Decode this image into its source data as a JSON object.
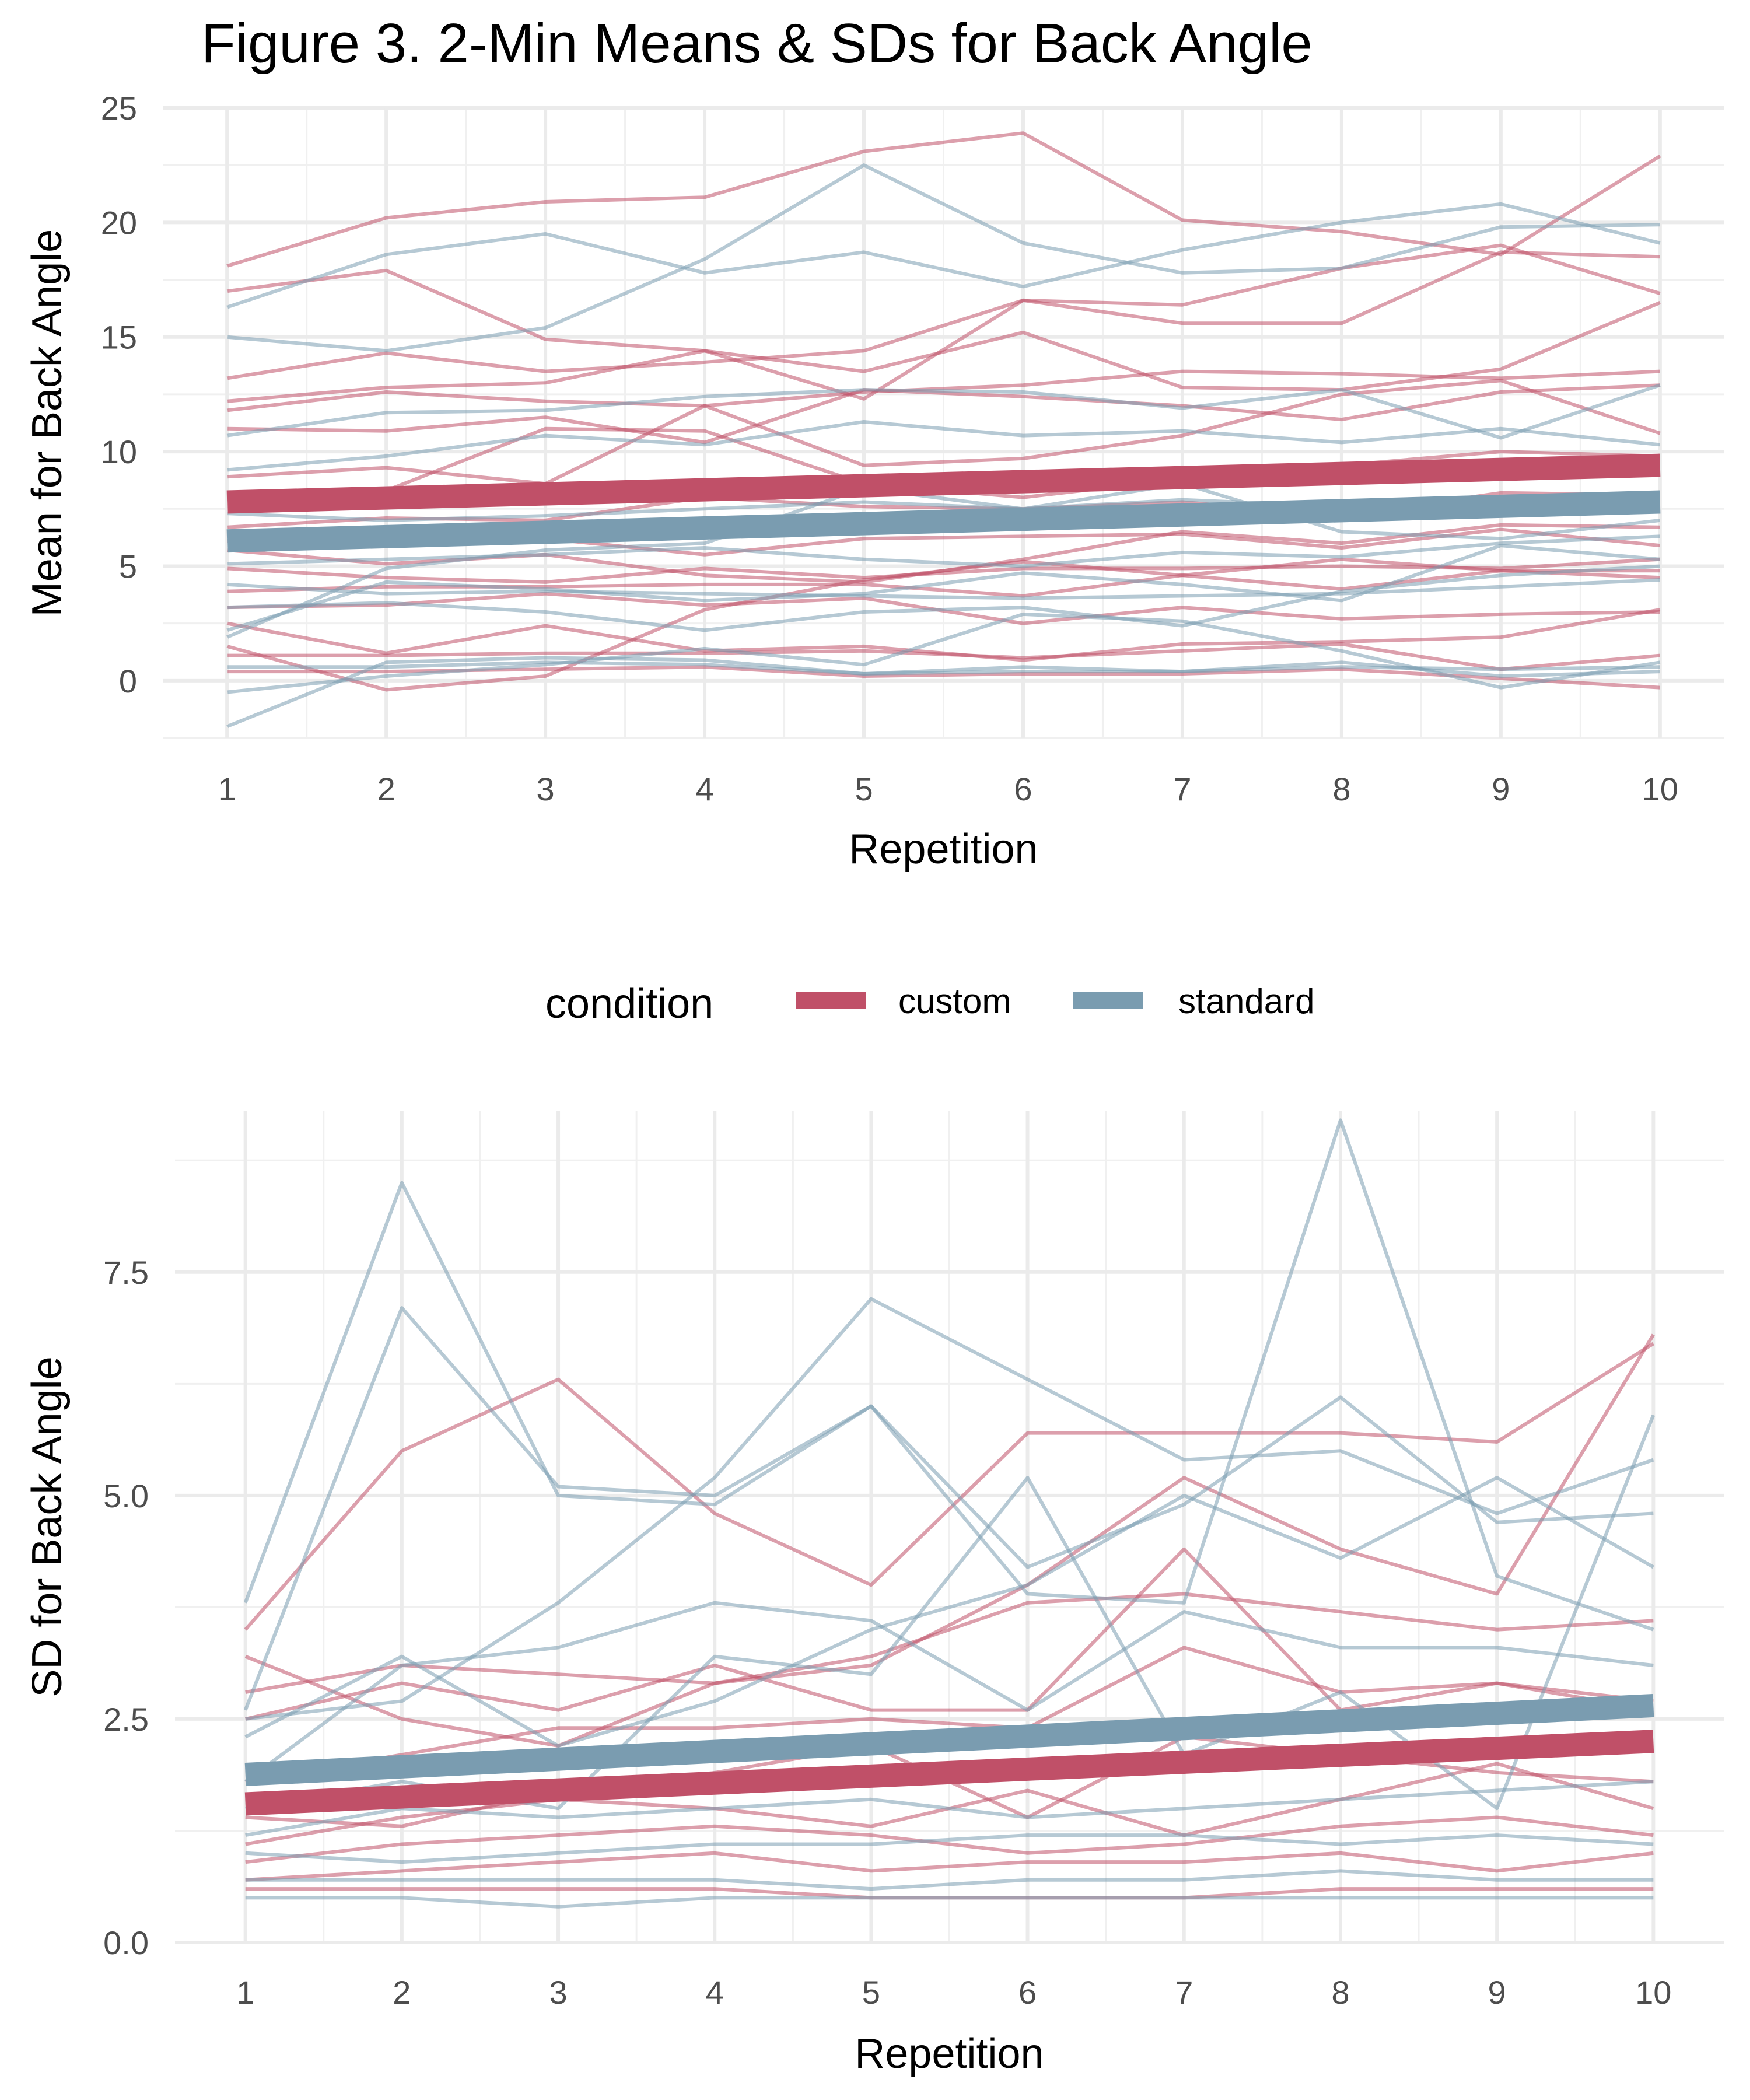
{
  "title": "Figure 3. 2-Min Means & SDs for Back Angle",
  "colors": {
    "custom": "#c05068",
    "standard": "#7a9cb0"
  },
  "legend": {
    "title": "condition",
    "items": [
      {
        "label": "custom",
        "color": "#c05068"
      },
      {
        "label": "standard",
        "color": "#7a9cb0"
      }
    ]
  },
  "chart_data": [
    {
      "type": "line",
      "xlabel": "Repetition",
      "ylabel": "Mean for Back Angle",
      "x": [
        1,
        2,
        3,
        4,
        5,
        6,
        7,
        8,
        9,
        10
      ],
      "xlim": [
        0.6,
        10.4
      ],
      "ylim": [
        -2.5,
        25
      ],
      "yticks": [
        0,
        5,
        10,
        15,
        20,
        25
      ],
      "grid": true,
      "trend": [
        {
          "condition": "custom",
          "values": [
            7.8,
            9.4
          ]
        },
        {
          "condition": "standard",
          "values": [
            6.1,
            7.8
          ]
        }
      ],
      "series": [
        {
          "condition": "custom",
          "values": [
            18.1,
            20.2,
            20.9,
            21.1,
            23.1,
            23.9,
            20.1,
            19.6,
            18.6,
            22.9
          ]
        },
        {
          "condition": "custom",
          "values": [
            17.0,
            17.9,
            14.9,
            14.4,
            12.3,
            16.6,
            16.4,
            18.0,
            19.0,
            16.9
          ]
        },
        {
          "condition": "custom",
          "values": [
            13.2,
            14.3,
            13.5,
            13.9,
            14.4,
            16.6,
            15.6,
            15.6,
            18.7,
            18.5
          ]
        },
        {
          "condition": "custom",
          "values": [
            12.2,
            12.8,
            13.0,
            14.4,
            13.5,
            15.2,
            12.8,
            12.7,
            13.6,
            16.5
          ]
        },
        {
          "condition": "custom",
          "values": [
            11.8,
            12.6,
            12.2,
            12.0,
            12.6,
            12.9,
            13.5,
            13.4,
            13.2,
            13.5
          ]
        },
        {
          "condition": "custom",
          "values": [
            11.0,
            10.9,
            11.5,
            10.4,
            12.7,
            12.4,
            12.0,
            11.4,
            12.6,
            12.9
          ]
        },
        {
          "condition": "custom",
          "values": [
            8.9,
            9.3,
            8.6,
            12.0,
            9.4,
            9.7,
            10.7,
            12.5,
            13.1,
            10.8
          ]
        },
        {
          "condition": "custom",
          "values": [
            7.9,
            8.3,
            11.0,
            10.9,
            8.6,
            8.0,
            8.8,
            9.4,
            10.0,
            9.8
          ]
        },
        {
          "condition": "custom",
          "values": [
            6.7,
            7.1,
            7.0,
            8.0,
            7.6,
            7.5,
            7.8,
            7.2,
            8.2,
            8.1
          ]
        },
        {
          "condition": "custom",
          "values": [
            6.1,
            6.0,
            6.2,
            5.5,
            6.2,
            6.3,
            6.4,
            5.8,
            6.6,
            5.9
          ]
        },
        {
          "condition": "custom",
          "values": [
            5.7,
            5.1,
            5.5,
            4.6,
            4.3,
            5.3,
            6.5,
            6.0,
            6.8,
            6.7
          ]
        },
        {
          "condition": "custom",
          "values": [
            4.9,
            4.5,
            4.3,
            4.9,
            4.5,
            4.9,
            4.9,
            5.0,
            4.9,
            5.3
          ]
        },
        {
          "condition": "custom",
          "values": [
            3.9,
            4.1,
            4.1,
            4.2,
            4.2,
            3.7,
            4.6,
            4.0,
            4.8,
            4.5
          ]
        },
        {
          "condition": "custom",
          "values": [
            3.2,
            3.3,
            3.8,
            3.3,
            3.6,
            2.5,
            3.2,
            2.7,
            2.9,
            3.0
          ]
        },
        {
          "condition": "custom",
          "values": [
            2.5,
            1.2,
            2.4,
            1.3,
            1.5,
            0.9,
            1.6,
            1.7,
            1.9,
            3.1
          ]
        },
        {
          "condition": "custom",
          "values": [
            1.5,
            -0.4,
            0.2,
            3.1,
            4.4,
            5.2,
            4.6,
            5.3,
            4.8,
            4.8
          ]
        },
        {
          "condition": "custom",
          "values": [
            1.1,
            1.1,
            1.2,
            1.2,
            1.3,
            1.0,
            1.3,
            1.6,
            0.5,
            1.1
          ]
        },
        {
          "condition": "custom",
          "values": [
            0.4,
            0.4,
            0.5,
            0.6,
            0.2,
            0.3,
            0.3,
            0.5,
            0.1,
            -0.3
          ]
        },
        {
          "condition": "standard",
          "values": [
            16.3,
            18.6,
            19.5,
            17.8,
            18.7,
            17.2,
            18.8,
            20.0,
            20.8,
            19.1
          ]
        },
        {
          "condition": "standard",
          "values": [
            15.0,
            14.4,
            15.4,
            18.4,
            22.5,
            19.1,
            17.8,
            18.0,
            19.8,
            19.9
          ]
        },
        {
          "condition": "standard",
          "values": [
            10.7,
            11.7,
            11.8,
            12.4,
            12.7,
            12.6,
            11.9,
            12.7,
            10.6,
            12.9
          ]
        },
        {
          "condition": "standard",
          "values": [
            9.2,
            9.8,
            10.7,
            10.3,
            11.3,
            10.7,
            10.9,
            10.4,
            11.0,
            10.3
          ]
        },
        {
          "condition": "standard",
          "values": [
            7.3,
            7.0,
            7.2,
            7.5,
            7.8,
            7.5,
            7.9,
            7.6,
            7.8,
            7.9
          ]
        },
        {
          "condition": "standard",
          "values": [
            5.1,
            5.3,
            5.5,
            5.8,
            5.3,
            5.0,
            5.6,
            5.4,
            6.0,
            6.3
          ]
        },
        {
          "condition": "standard",
          "values": [
            4.2,
            3.8,
            3.9,
            3.8,
            3.7,
            3.6,
            3.7,
            3.8,
            4.1,
            4.4
          ]
        },
        {
          "condition": "standard",
          "values": [
            3.2,
            3.4,
            3.0,
            2.2,
            3.0,
            3.2,
            2.4,
            3.9,
            4.6,
            5.0
          ]
        },
        {
          "condition": "standard",
          "values": [
            2.2,
            4.3,
            4.0,
            3.5,
            3.8,
            4.7,
            4.2,
            3.5,
            5.9,
            5.3
          ]
        },
        {
          "condition": "standard",
          "values": [
            1.9,
            4.9,
            5.7,
            6.0,
            8.4,
            7.5,
            8.6,
            6.5,
            6.2,
            7.0
          ]
        },
        {
          "condition": "standard",
          "values": [
            0.6,
            0.6,
            0.8,
            0.7,
            0.3,
            0.6,
            0.4,
            0.8,
            0.2,
            0.4
          ]
        },
        {
          "condition": "standard",
          "values": [
            -0.5,
            0.2,
            0.7,
            1.4,
            0.7,
            2.9,
            2.6,
            1.3,
            -0.3,
            0.8
          ]
        },
        {
          "condition": "standard",
          "values": [
            -2.0,
            0.8,
            1.0,
            0.9,
            0.3,
            0.4,
            0.4,
            0.6,
            0.5,
            0.6
          ]
        }
      ]
    },
    {
      "type": "line",
      "xlabel": "Repetition",
      "ylabel": "SD for Back Angle",
      "x": [
        1,
        2,
        3,
        4,
        5,
        6,
        7,
        8,
        9,
        10
      ],
      "xlim": [
        0.55,
        10.45
      ],
      "ylim": [
        0,
        9.3
      ],
      "yticks": [
        0,
        2.5,
        5,
        7.5
      ],
      "ytick_labels": [
        "0.0",
        "2.5",
        "5.0",
        "7.5"
      ],
      "grid": true,
      "trend": [
        {
          "condition": "custom",
          "values": [
            1.55,
            2.25
          ]
        },
        {
          "condition": "standard",
          "values": [
            1.88,
            2.65
          ]
        }
      ],
      "series": [
        {
          "condition": "custom",
          "values": [
            3.5,
            5.5,
            6.3,
            4.8,
            4.0,
            5.7,
            5.7,
            5.7,
            5.6,
            6.7
          ]
        },
        {
          "condition": "custom",
          "values": [
            3.2,
            2.5,
            2.2,
            2.9,
            3.1,
            4.0,
            5.2,
            4.4,
            3.9,
            6.8
          ]
        },
        {
          "condition": "custom",
          "values": [
            2.8,
            3.1,
            3.0,
            2.9,
            3.2,
            3.8,
            3.9,
            3.7,
            3.5,
            3.6
          ]
        },
        {
          "condition": "custom",
          "values": [
            2.5,
            2.9,
            2.6,
            3.1,
            2.6,
            2.6,
            4.4,
            2.6,
            2.9,
            2.7
          ]
        },
        {
          "condition": "custom",
          "values": [
            1.8,
            2.1,
            2.4,
            2.4,
            2.5,
            2.4,
            3.3,
            2.8,
            2.9,
            2.6
          ]
        },
        {
          "condition": "custom",
          "values": [
            1.4,
            1.3,
            1.7,
            1.9,
            2.2,
            1.4,
            2.3,
            2.1,
            1.9,
            1.8
          ]
        },
        {
          "condition": "custom",
          "values": [
            1.1,
            1.4,
            1.6,
            1.5,
            1.3,
            1.7,
            1.2,
            1.6,
            2.0,
            1.5
          ]
        },
        {
          "condition": "custom",
          "values": [
            0.9,
            1.1,
            1.2,
            1.3,
            1.2,
            1.0,
            1.1,
            1.3,
            1.4,
            1.2
          ]
        },
        {
          "condition": "custom",
          "values": [
            0.7,
            0.8,
            0.9,
            1.0,
            0.8,
            0.9,
            0.9,
            1.0,
            0.8,
            1.0
          ]
        },
        {
          "condition": "custom",
          "values": [
            0.6,
            0.6,
            0.6,
            0.6,
            0.5,
            0.5,
            0.5,
            0.6,
            0.6,
            0.6
          ]
        },
        {
          "condition": "standard",
          "values": [
            3.8,
            8.5,
            5.0,
            4.9,
            6.0,
            3.9,
            3.8,
            9.2,
            4.1,
            3.5
          ]
        },
        {
          "condition": "standard",
          "values": [
            2.6,
            7.1,
            5.1,
            5.0,
            6.0,
            4.2,
            4.9,
            6.1,
            4.7,
            4.8
          ]
        },
        {
          "condition": "standard",
          "values": [
            2.5,
            2.7,
            3.8,
            5.2,
            7.2,
            6.3,
            5.4,
            5.5,
            4.8,
            5.4
          ]
        },
        {
          "condition": "standard",
          "values": [
            2.3,
            3.2,
            2.2,
            2.7,
            3.5,
            4.0,
            5.0,
            4.3,
            5.2,
            4.2
          ]
        },
        {
          "condition": "standard",
          "values": [
            1.8,
            3.1,
            3.3,
            3.8,
            3.6,
            2.6,
            3.7,
            3.3,
            3.3,
            3.1
          ]
        },
        {
          "condition": "standard",
          "values": [
            1.5,
            1.8,
            1.5,
            3.2,
            3.0,
            5.2,
            2.1,
            2.8,
            1.5,
            5.9
          ]
        },
        {
          "condition": "standard",
          "values": [
            1.2,
            1.5,
            1.4,
            1.5,
            1.6,
            1.4,
            1.5,
            1.6,
            1.7,
            1.8
          ]
        },
        {
          "condition": "standard",
          "values": [
            1.0,
            0.9,
            1.0,
            1.1,
            1.1,
            1.2,
            1.2,
            1.1,
            1.2,
            1.1
          ]
        },
        {
          "condition": "standard",
          "values": [
            0.7,
            0.7,
            0.7,
            0.7,
            0.6,
            0.7,
            0.7,
            0.8,
            0.7,
            0.7
          ]
        },
        {
          "condition": "standard",
          "values": [
            0.5,
            0.5,
            0.4,
            0.5,
            0.5,
            0.5,
            0.5,
            0.5,
            0.5,
            0.5
          ]
        }
      ]
    }
  ]
}
